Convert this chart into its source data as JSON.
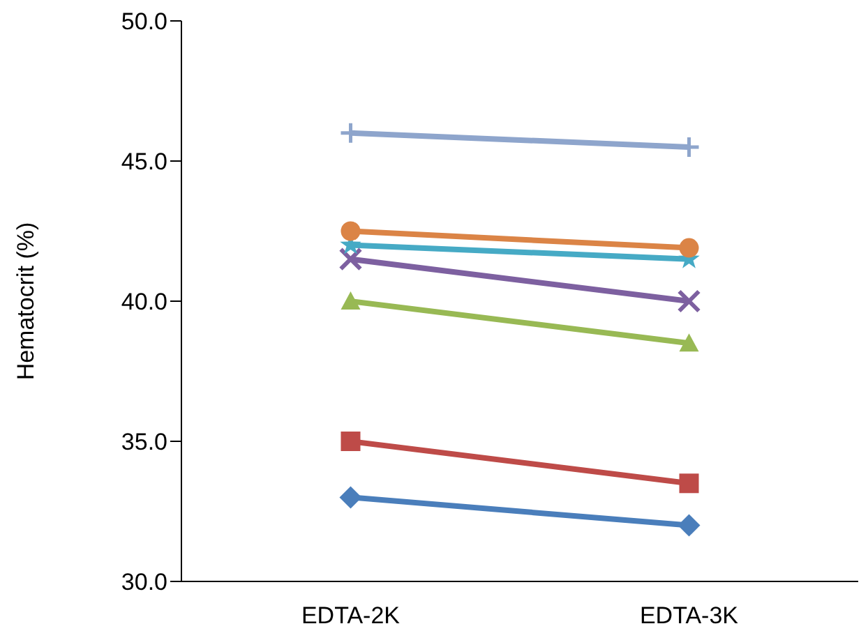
{
  "chart_data": {
    "type": "line",
    "ylabel": "Hematocrit (%)",
    "categories": [
      "EDTA-2K",
      "EDTA-3K"
    ],
    "series": [
      {
        "color": "#4a7ebb",
        "marker": "diamond",
        "values": [
          33.0,
          32.0
        ]
      },
      {
        "color": "#be4b48",
        "marker": "square",
        "values": [
          35.0,
          33.5
        ]
      },
      {
        "color": "#98b954",
        "marker": "triangle",
        "values": [
          40.0,
          38.5
        ]
      },
      {
        "color": "#7d60a0",
        "marker": "x",
        "values": [
          41.5,
          40.0
        ]
      },
      {
        "color": "#46aac5",
        "marker": "star",
        "values": [
          42.0,
          41.5
        ]
      },
      {
        "color": "#db8446",
        "marker": "circle",
        "values": [
          42.5,
          41.9
        ]
      },
      {
        "color": "#8ea5cc",
        "marker": "cross",
        "values": [
          46.0,
          45.5
        ]
      }
    ],
    "ylim": [
      30,
      50
    ],
    "yticks": [
      {
        "value": 30,
        "label": "30.0"
      },
      {
        "value": 35,
        "label": "35.0"
      },
      {
        "value": 40,
        "label": "40.0"
      },
      {
        "value": 45,
        "label": "45.0"
      },
      {
        "value": 50,
        "label": "50.0"
      }
    ],
    "grid": false,
    "legend": false,
    "line_style": "solid"
  }
}
